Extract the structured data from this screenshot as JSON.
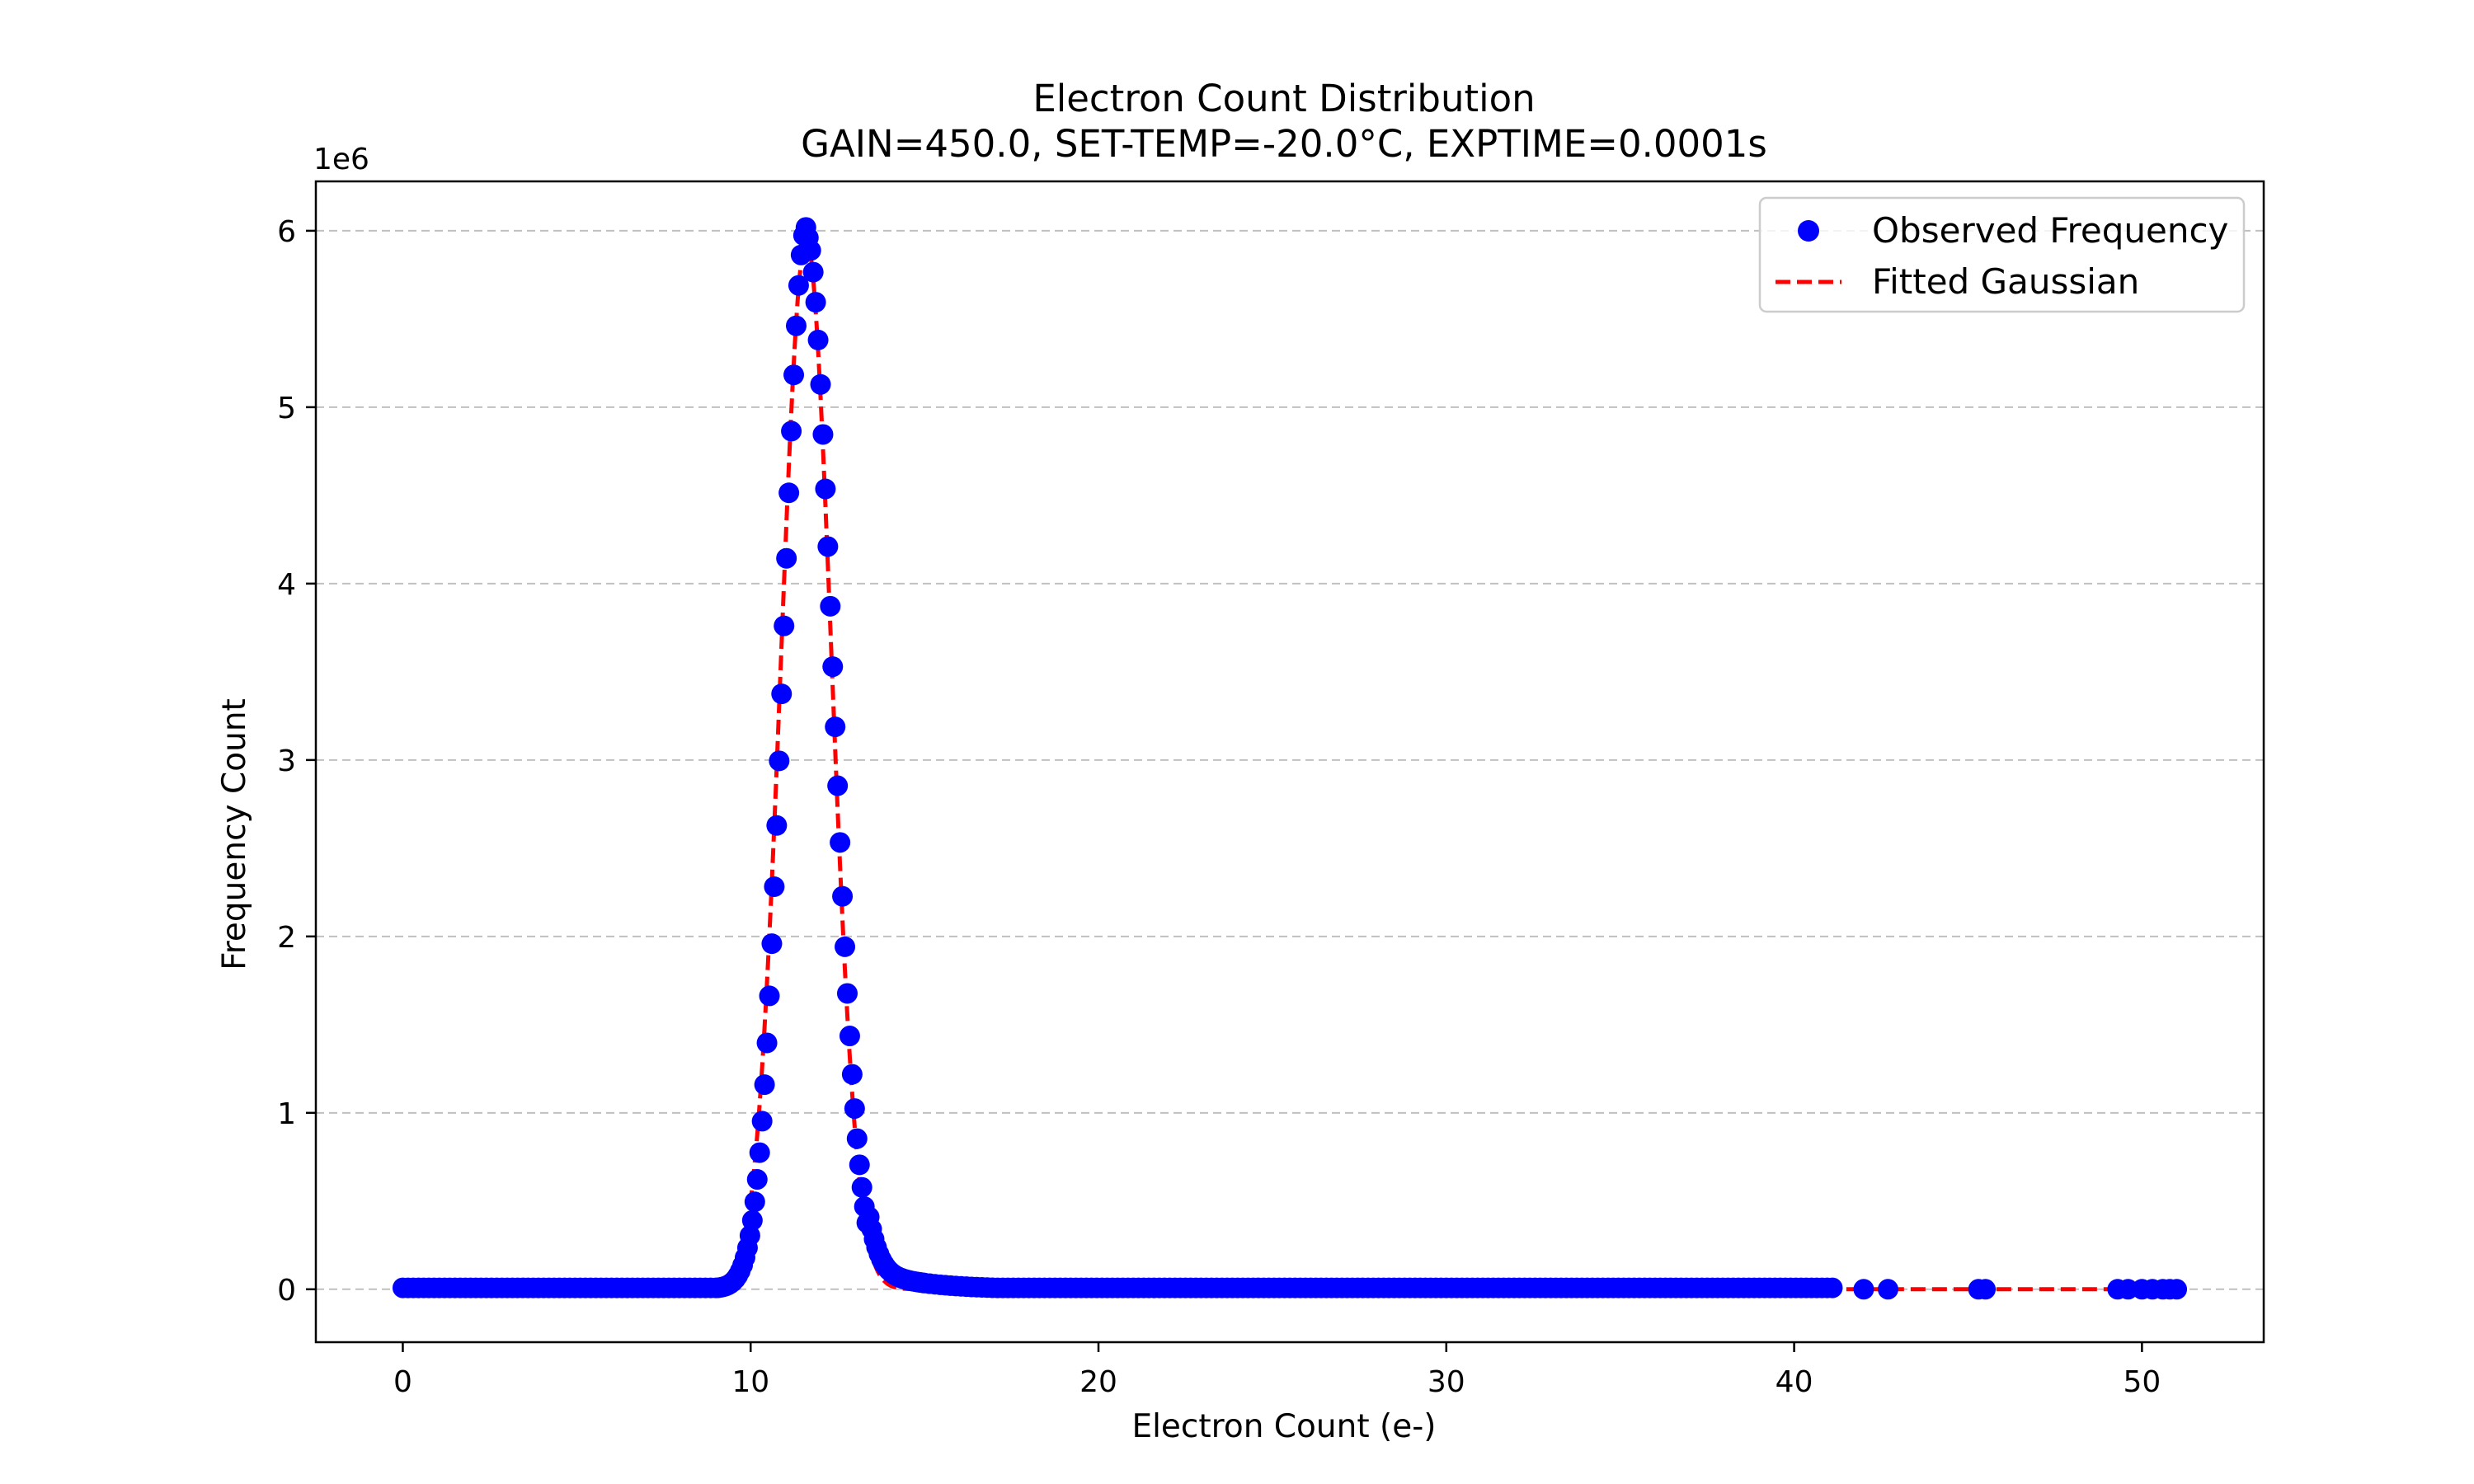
{
  "chart_data": {
    "type": "scatter",
    "title": "Electron Count Distribution",
    "subtitle": "GAIN=450.0, SET-TEMP=-20.0°C, EXPTIME=0.0001s",
    "xlabel": "Electron Count (e-)",
    "ylabel": "Frequency Count",
    "y_offset_label": "1e6",
    "xlim": [
      -2.5,
      53.5
    ],
    "ylim": [
      -0.3,
      6.28
    ],
    "y_scale_note": "y values in millions (x1e6)",
    "xticks": [
      0,
      10,
      20,
      30,
      40,
      50
    ],
    "yticks": [
      0,
      1,
      2,
      3,
      4,
      5,
      6
    ],
    "grid": "horizontal dashed",
    "legend": "top-right",
    "colors": {
      "observed": "#0000ff",
      "fitted": "#ff0000",
      "grid": "#c0c0c0"
    },
    "series": [
      {
        "name": "Observed Frequency",
        "kind": "scatter",
        "x_range": [
          0,
          41.2
        ],
        "peak_x": 11.6,
        "peak_y": 5.98,
        "sample_points": [
          {
            "x": 9.2,
            "y": 0.05
          },
          {
            "x": 9.8,
            "y": 0.3
          },
          {
            "x": 10.2,
            "y": 0.64
          },
          {
            "x": 10.4,
            "y": 1.1
          },
          {
            "x": 10.6,
            "y": 1.77
          },
          {
            "x": 10.8,
            "y": 2.64
          },
          {
            "x": 11.0,
            "y": 3.67
          },
          {
            "x": 11.2,
            "y": 4.7
          },
          {
            "x": 11.4,
            "y": 5.51
          },
          {
            "x": 11.6,
            "y": 5.98
          },
          {
            "x": 11.8,
            "y": 5.92
          },
          {
            "x": 12.0,
            "y": 5.41
          },
          {
            "x": 12.2,
            "y": 4.58
          },
          {
            "x": 12.4,
            "y": 3.63
          },
          {
            "x": 12.6,
            "y": 2.71
          },
          {
            "x": 12.8,
            "y": 1.92
          },
          {
            "x": 13.0,
            "y": 1.3
          },
          {
            "x": 13.2,
            "y": 0.74
          },
          {
            "x": 13.6,
            "y": 0.3
          },
          {
            "x": 14.5,
            "y": 0.08
          },
          {
            "x": 16.0,
            "y": 0.03
          }
        ],
        "outliers": [
          {
            "x": 42.0,
            "y": 0.0
          },
          {
            "x": 42.7,
            "y": 0.0
          },
          {
            "x": 45.3,
            "y": 0.0
          },
          {
            "x": 45.5,
            "y": 0.0
          },
          {
            "x": 49.3,
            "y": 0.0
          },
          {
            "x": 49.6,
            "y": 0.0
          },
          {
            "x": 50.0,
            "y": 0.0
          },
          {
            "x": 50.3,
            "y": 0.0
          },
          {
            "x": 50.6,
            "y": 0.0
          },
          {
            "x": 50.8,
            "y": 0.0
          },
          {
            "x": 51.0,
            "y": 0.0
          }
        ]
      },
      {
        "name": "Fitted Gaussian",
        "kind": "line",
        "style": "dashed",
        "amplitude": 5.95,
        "mean": 11.6,
        "sigma": 0.72,
        "x_range": [
          0,
          51
        ]
      }
    ]
  }
}
